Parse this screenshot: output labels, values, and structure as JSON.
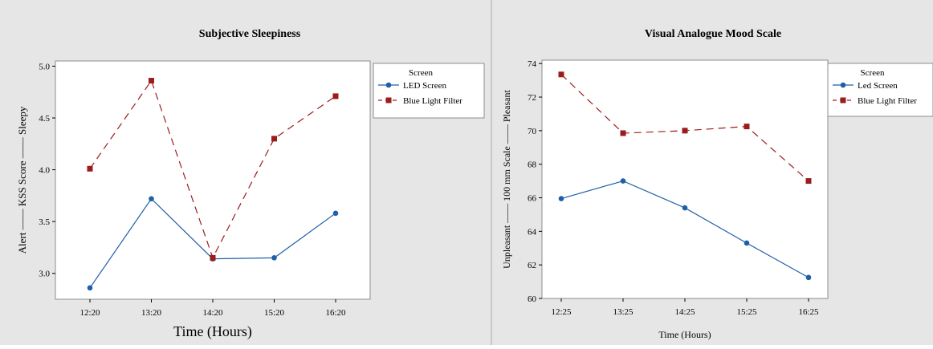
{
  "chart_data": [
    {
      "type": "line",
      "title": "Subjective Sleepiness",
      "xlabel": "Time (Hours)",
      "ylabel": "Alert —— KSS Score —— Sleepy",
      "categories": [
        "12:20",
        "13:20",
        "14:20",
        "15:20",
        "16:20"
      ],
      "ylim": [
        2.75,
        5.05
      ],
      "yticks": [
        "3.0",
        "3.5",
        "4.0",
        "4.5",
        "5.0"
      ],
      "legend_title": "Screen",
      "legend_position": "right",
      "series": [
        {
          "name": "LED Screen",
          "values": [
            2.86,
            3.72,
            3.14,
            3.15,
            3.58
          ],
          "color": "#1f5fa8",
          "marker": "circle",
          "dash": "solid"
        },
        {
          "name": "Blue Light Filter",
          "values": [
            4.01,
            4.86,
            3.15,
            4.3,
            4.71
          ],
          "color": "#9b1c1c",
          "marker": "square",
          "dash": "dashed"
        }
      ]
    },
    {
      "type": "line",
      "title": "Visual Analogue Mood Scale",
      "xlabel": "Time (Hours)",
      "ylabel": "Unpleasant —— 100 mm Scale —— Pleasant",
      "categories": [
        "12:25",
        "13:25",
        "14:25",
        "15:25",
        "16:25"
      ],
      "ylim": [
        60,
        74.2
      ],
      "yticks": [
        "60",
        "62",
        "64",
        "66",
        "68",
        "70",
        "72",
        "74"
      ],
      "legend_title": "Screen",
      "legend_position": "right",
      "series": [
        {
          "name": "Led Screen",
          "values": [
            65.95,
            67.0,
            65.4,
            63.3,
            61.25
          ],
          "color": "#1f5fa8",
          "marker": "circle",
          "dash": "solid"
        },
        {
          "name": "Blue Light Filter",
          "values": [
            73.35,
            69.85,
            70.0,
            70.25,
            67.0
          ],
          "color": "#9b1c1c",
          "marker": "square",
          "dash": "dashed"
        }
      ]
    }
  ]
}
